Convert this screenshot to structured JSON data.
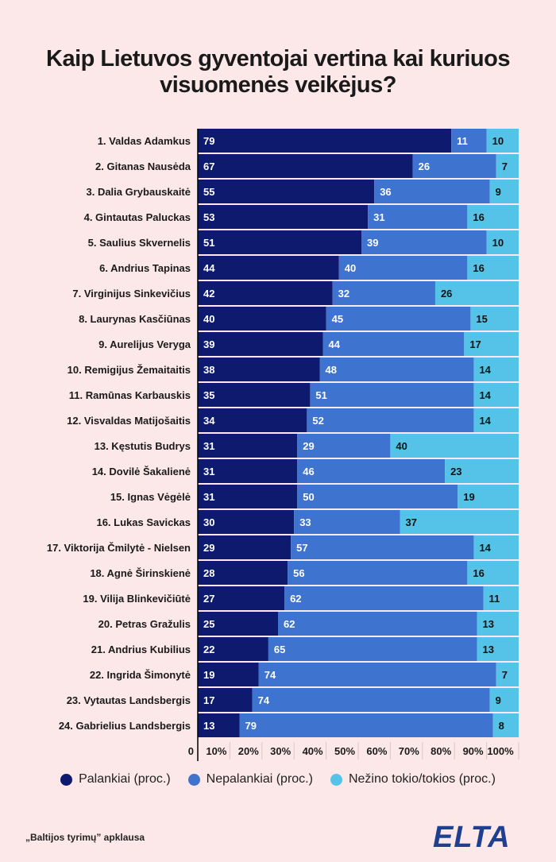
{
  "title_line1": "Kaip Lietuvos gyventojai vertina kai kuriuos",
  "title_line2": "visuomenės veikėjus?",
  "colors": {
    "favorable": "#0e1a6e",
    "unfavorable": "#3e73cf",
    "unknown": "#55c3e8",
    "background": "#fce8e8"
  },
  "legend": [
    {
      "label": "Palankiai (proc.)",
      "color": "#0e1a6e"
    },
    {
      "label": "Nepalankiai (proc.)",
      "color": "#3e73cf"
    },
    {
      "label": "Nežino tokio/tokios (proc.)",
      "color": "#55c3e8"
    }
  ],
  "footer_note": "„Baltijos tyrimų” apklausa",
  "logo_text": "ELTA",
  "chart_data": {
    "type": "bar",
    "orientation": "horizontal",
    "stacked": true,
    "title": "Kaip Lietuvos gyventojai vertina kai kuriuos visuomenės veikėjus?",
    "categories": [
      "1. Valdas Adamkus",
      "2. Gitanas Nausėda",
      "3. Dalia Grybauskaitė",
      "4. Gintautas Paluckas",
      "5. Saulius Skvernelis",
      "6. Andrius Tapinas",
      "7. Virginijus Sinkevičius",
      "8. Laurynas Kasčiūnas",
      "9. Aurelijus Veryga",
      "10. Remigijus Žemaitaitis",
      "11. Ramūnas Karbauskis",
      "12. Visvaldas Matijošaitis",
      "13. Kęstutis Budrys",
      "14. Dovilė Šakalienė",
      "15. Ignas Vėgėlė",
      "16. Lukas Savickas",
      "17. Viktorija Čmilytė - Nielsen",
      "18. Agnė Širinskienė",
      "19. Vilija Blinkevičiūtė",
      "20. Petras Gražulis",
      "21. Andrius Kubilius",
      "22. Ingrida Šimonytė",
      "23. Vytautas Landsbergis",
      "24. Gabrielius Landsbergis"
    ],
    "series": [
      {
        "name": "Palankiai (proc.)",
        "color": "#0e1a6e",
        "values": [
          79,
          67,
          55,
          53,
          51,
          44,
          42,
          40,
          39,
          38,
          35,
          34,
          31,
          31,
          31,
          30,
          29,
          28,
          27,
          25,
          22,
          19,
          17,
          13
        ]
      },
      {
        "name": "Nepalankiai (proc.)",
        "color": "#3e73cf",
        "values": [
          11,
          26,
          36,
          31,
          39,
          40,
          32,
          45,
          44,
          48,
          51,
          52,
          29,
          46,
          50,
          33,
          57,
          56,
          62,
          62,
          65,
          74,
          74,
          79
        ]
      },
      {
        "name": "Nežino tokio/tokios (proc.)",
        "color": "#55c3e8",
        "values": [
          10,
          7,
          9,
          16,
          10,
          16,
          26,
          15,
          17,
          14,
          14,
          14,
          40,
          23,
          19,
          37,
          14,
          16,
          11,
          13,
          13,
          7,
          9,
          8
        ]
      }
    ],
    "x_ticks": [
      "0",
      "10%",
      "20%",
      "30%",
      "40%",
      "50%",
      "60%",
      "70%",
      "80%",
      "90%",
      "100%"
    ],
    "xlim": [
      0,
      100
    ],
    "legend_position": "bottom",
    "grid": false
  }
}
